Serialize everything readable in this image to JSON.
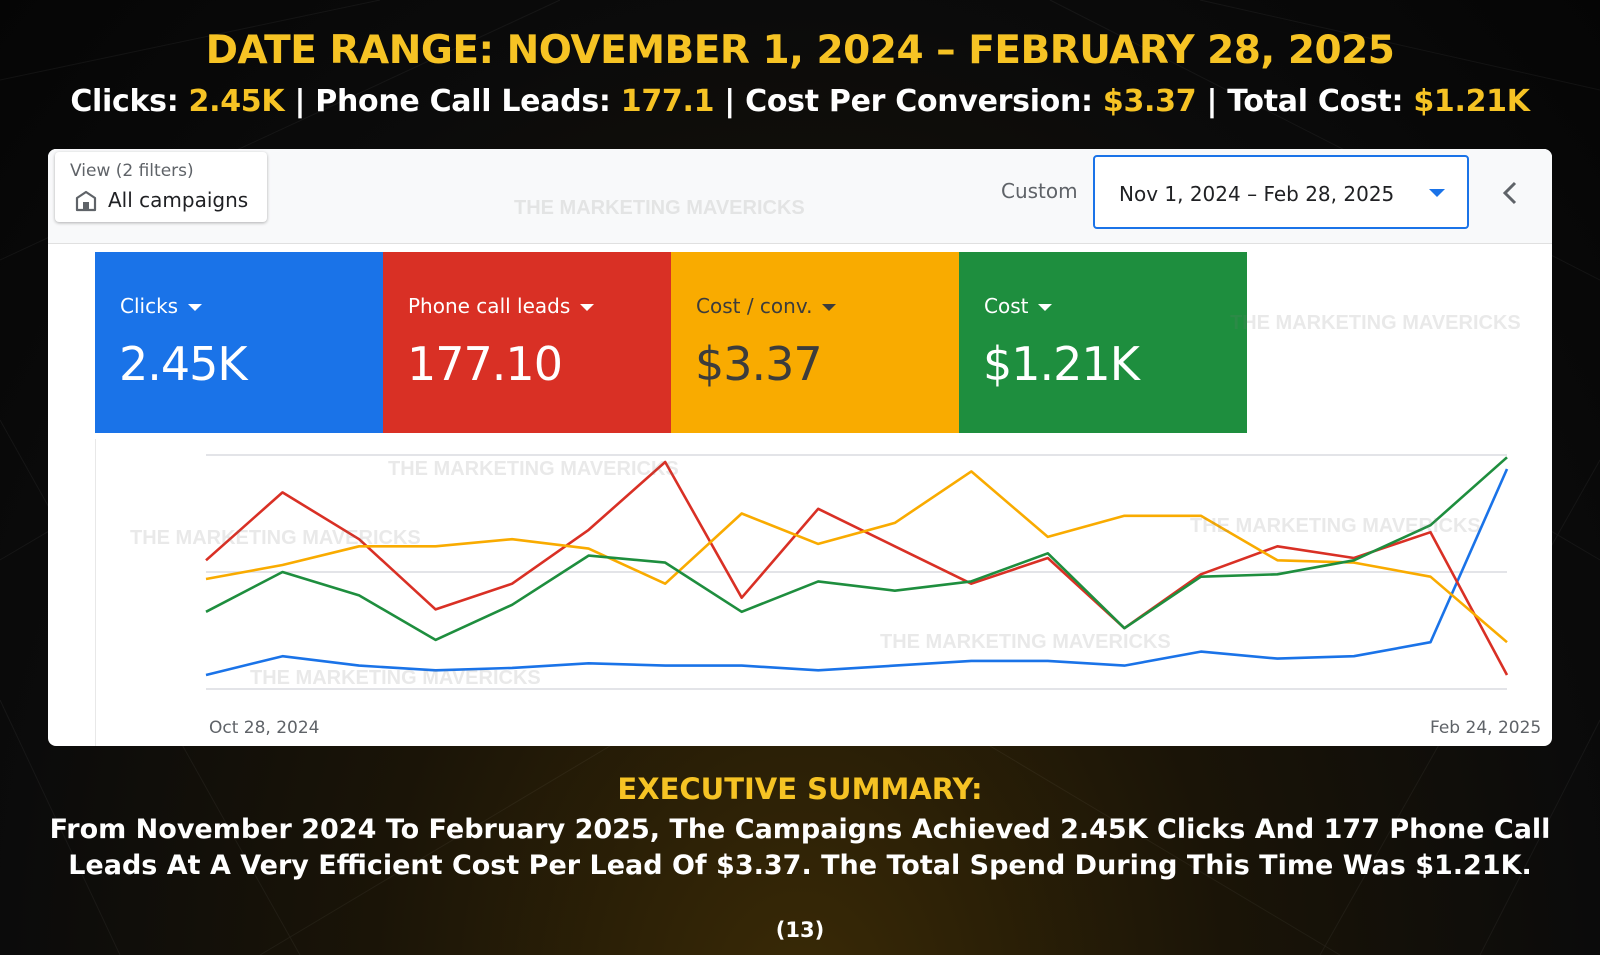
{
  "header": {
    "date_range": "DATE RANGE: NOVEMBER 1, 2024 – FEBRUARY 28, 2025",
    "kpis": [
      {
        "label": "Clicks: ",
        "value": "2.45K"
      },
      {
        "label": "Phone Call Leads: ",
        "value": "177.1"
      },
      {
        "label": "Cost Per Conversion: ",
        "value": "$3.37"
      },
      {
        "label": "Total Cost: ",
        "value": "$1.21K"
      }
    ],
    "separator": " | "
  },
  "toolbar": {
    "view_label": "View (2 filters)",
    "view_value": "All campaigns",
    "custom_label": "Custom",
    "date_value": "Nov 1, 2024 – Feb 28, 2025"
  },
  "tiles": [
    {
      "label": "Clicks",
      "value": "2.45K",
      "color": "#1a73e8"
    },
    {
      "label": "Phone call leads",
      "value": "177.10",
      "color": "#d93025"
    },
    {
      "label": "Cost / conv.",
      "value": "$3.37",
      "color": "#f9ab00"
    },
    {
      "label": "Cost",
      "value": "$1.21K",
      "color": "#1e8e3e"
    }
  ],
  "watermark_text": "THE MARKETING MAVERICKS",
  "chart_data": {
    "type": "line",
    "x_start_label": "Oct 28, 2024",
    "x_end_label": "Feb 24, 2025",
    "points": 18,
    "y_range": [
      0,
      100
    ],
    "grid": true,
    "legend": "tiles-above",
    "series": [
      {
        "name": "Clicks",
        "color": "#1a73e8",
        "values": [
          6,
          14,
          10,
          8,
          9,
          11,
          10,
          10,
          8,
          10,
          12,
          12,
          10,
          16,
          13,
          14,
          20,
          94
        ]
      },
      {
        "name": "Phone call leads",
        "color": "#d93025",
        "values": [
          55,
          84,
          64,
          34,
          45,
          68,
          97,
          39,
          77,
          61,
          45,
          56,
          26,
          49,
          61,
          56,
          67,
          6
        ]
      },
      {
        "name": "Cost / conv.",
        "color": "#f9ab00",
        "values": [
          47,
          53,
          61,
          61,
          64,
          60,
          45,
          75,
          62,
          71,
          93,
          65,
          74,
          74,
          55,
          54,
          48,
          20
        ]
      },
      {
        "name": "Cost",
        "color": "#1e8e3e",
        "values": [
          33,
          50,
          40,
          21,
          36,
          57,
          54,
          33,
          46,
          42,
          46,
          58,
          26,
          48,
          49,
          55,
          70,
          99
        ]
      }
    ]
  },
  "summary": {
    "title": "EXECUTIVE SUMMARY:",
    "text": "From November 2024 To February 2025, The Campaigns Achieved 2.45K Clicks And 177 Phone Call Leads At A Very Efficient Cost Per Lead Of $3.37. The Total Spend During This Time Was $1.21K."
  },
  "page_number": "(13)"
}
